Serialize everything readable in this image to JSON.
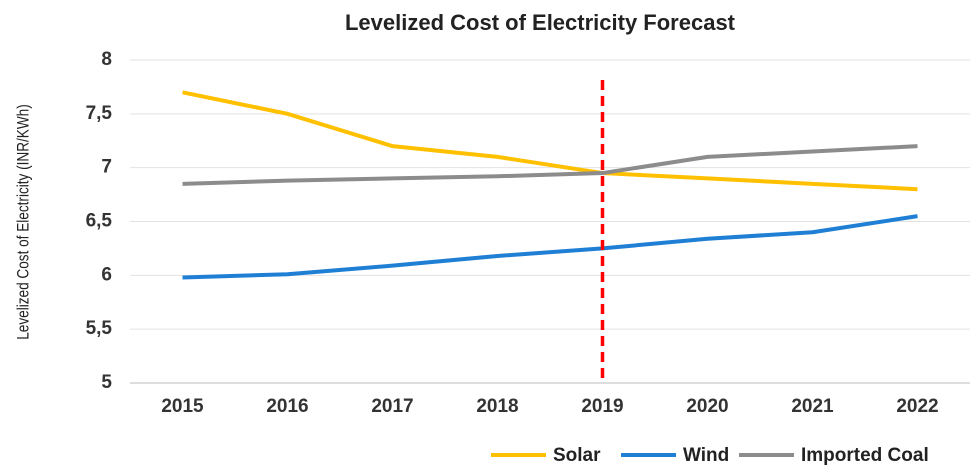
{
  "chart_data": {
    "type": "line",
    "title": "Levelized Cost of Electricity  Forecast",
    "y_label": "Levelized Cost of Electricity (INR/KWh)",
    "categories": [
      "2015",
      "2016",
      "2017",
      "2018",
      "2019",
      "2020",
      "2021",
      "2022"
    ],
    "series": [
      {
        "name": "Solar",
        "color": "#ffc000",
        "values": [
          7.7,
          7.5,
          7.2,
          7.1,
          6.95,
          6.9,
          6.85,
          6.8
        ]
      },
      {
        "name": "Wind",
        "color": "#1f7fd4",
        "values": [
          5.98,
          6.01,
          6.09,
          6.18,
          6.25,
          6.34,
          6.4,
          6.55
        ]
      },
      {
        "name": "Imported Coal",
        "color": "#8c8c8c",
        "values": [
          6.85,
          6.88,
          6.9,
          6.92,
          6.95,
          7.1,
          7.15,
          7.2
        ]
      }
    ],
    "ylim": [
      5,
      8
    ],
    "yticks": [
      5,
      {
        "value": 5.5,
        "label": "5,5"
      },
      6,
      {
        "value": 6.5,
        "label": "6,5"
      },
      7,
      {
        "value": 7.5,
        "label": "7,5"
      },
      8
    ],
    "grid": true,
    "legend": "bottom",
    "vline": {
      "category": "2019",
      "color": "#ff0000"
    }
  }
}
